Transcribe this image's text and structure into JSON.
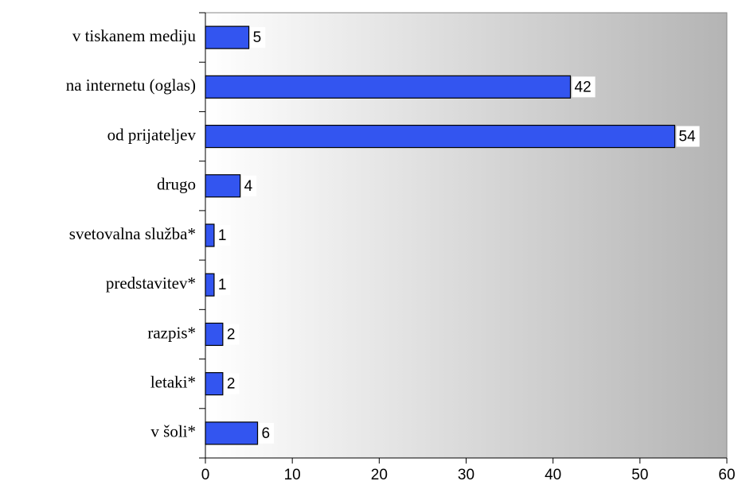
{
  "chart_data": {
    "type": "bar",
    "orientation": "horizontal",
    "categories": [
      "v tiskanem mediju",
      "na internetu (oglas)",
      "od prijateljev",
      "drugo",
      "svetovalna služba*",
      "predstavitev*",
      "razpis*",
      "letaki*",
      "v šoli*"
    ],
    "values": [
      5,
      42,
      54,
      4,
      1,
      1,
      2,
      2,
      6
    ],
    "color": "#3355f0",
    "xlim": [
      0,
      60
    ],
    "xticks": [
      0,
      10,
      20,
      30,
      40,
      50,
      60
    ]
  }
}
